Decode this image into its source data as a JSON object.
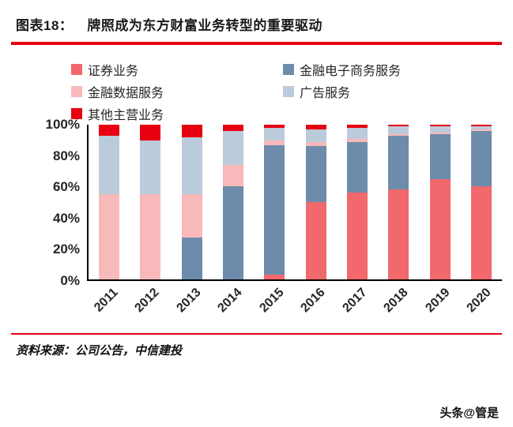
{
  "header": {
    "title_label": "图表18：",
    "title_text": "牌照成为东方财富业务转型的重要驱动"
  },
  "footer": {
    "source": "资料来源：公司公告，中信建投",
    "watermark": "头条@管是"
  },
  "colors": {
    "accent_rule": "#e60012",
    "axis": "#000000"
  },
  "chart_data": {
    "type": "bar",
    "subtype": "100%-stacked-column",
    "title": "牌照成为东方财富业务转型的重要驱动",
    "xlabel": "",
    "ylabel": "",
    "ylim": [
      0,
      100
    ],
    "grid": false,
    "legend_position": "top",
    "yticks": [
      "100%",
      "80%",
      "60%",
      "40%",
      "20%",
      "0%"
    ],
    "categories": [
      "2011",
      "2012",
      "2013",
      "2014",
      "2015",
      "2016",
      "2017",
      "2018",
      "2019",
      "2020"
    ],
    "series": [
      {
        "name": "证券业务",
        "color": "#f1696c",
        "values": [
          0,
          0,
          0,
          0,
          3,
          50,
          56,
          58,
          65,
          60
        ]
      },
      {
        "name": "金融电子商务服务",
        "color": "#6d8cab",
        "values": [
          0,
          0,
          27,
          60,
          84,
          36,
          33,
          35,
          29,
          36
        ]
      },
      {
        "name": "金融数据服务",
        "color": "#f8b9ba",
        "values": [
          55,
          55,
          28,
          14,
          3,
          3,
          2,
          1,
          1,
          1
        ]
      },
      {
        "name": "广告服务",
        "color": "#bccbdb",
        "values": [
          38,
          35,
          37,
          22,
          8,
          8,
          7,
          5,
          4,
          2
        ]
      },
      {
        "name": "其他主营业务",
        "color": "#e60012",
        "values": [
          7,
          10,
          8,
          4,
          2,
          3,
          2,
          1,
          1,
          1
        ]
      }
    ]
  }
}
